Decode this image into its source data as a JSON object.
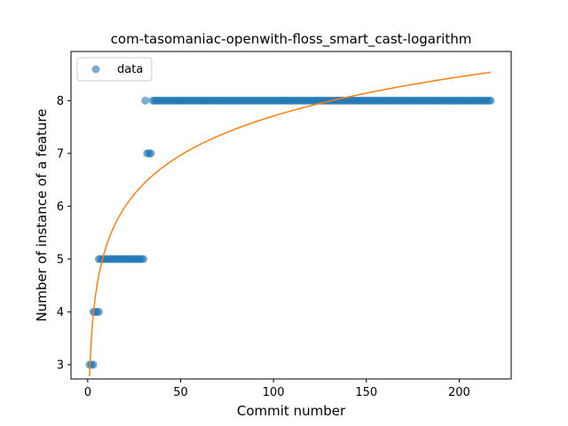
{
  "chart_data": {
    "type": "scatter",
    "title": "com-tasomaniac-openwith-floss_smart_cast-logarithm",
    "xlabel": "Commit number",
    "ylabel": "Number of instance of a feature",
    "xlim": [
      -9,
      228
    ],
    "ylim": [
      2.73,
      8.93
    ],
    "xticks": [
      0,
      50,
      100,
      150,
      200
    ],
    "yticks": [
      3,
      4,
      5,
      6,
      7,
      8
    ],
    "legend": {
      "position": "top-left",
      "entries": [
        "data"
      ]
    },
    "grid": false,
    "colors": {
      "data": "#1f77b4",
      "fit": "#ff7f0e"
    },
    "series": [
      {
        "name": "data",
        "kind": "scatter",
        "steps": [
          {
            "x_from": 1,
            "x_to": 3,
            "y": 3
          },
          {
            "x_from": 3,
            "x_to": 6,
            "y": 4
          },
          {
            "x_from": 6,
            "x_to": 30,
            "y": 5
          },
          {
            "x_from": 31,
            "x_to": 31,
            "y": 8
          },
          {
            "x_from": 32,
            "x_to": 34,
            "y": 7
          },
          {
            "x_from": 35,
            "x_to": 217,
            "y": 8
          }
        ]
      },
      {
        "kind": "line",
        "fit": "logarithmic",
        "a": 2.78,
        "b": 1.07,
        "x_from": 1,
        "x_to": 217
      }
    ]
  }
}
